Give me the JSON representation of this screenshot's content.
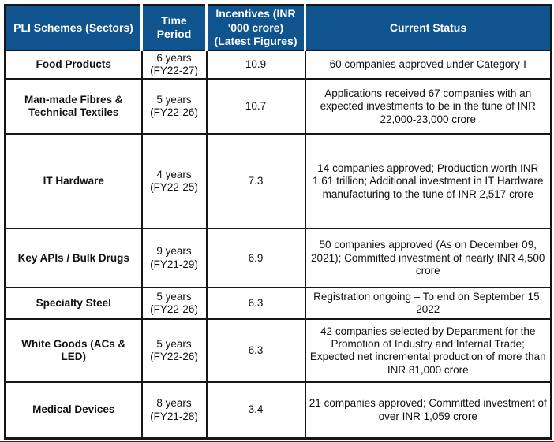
{
  "table": {
    "columns": [
      {
        "label": "PLI Schemes (Sectors)"
      },
      {
        "label": "Time\nPeriod"
      },
      {
        "label": "Incentives (INR\n'000 crore)\n(Latest Figures)"
      },
      {
        "label": "Current Status"
      }
    ],
    "rows": [
      {
        "sector": "Food Products",
        "time_period": "6 years\n(FY22-27)",
        "incentives": "10.9",
        "status": "60 companies approved under Category-I"
      },
      {
        "sector": "Man-made Fibres & Technical Textiles",
        "time_period": "5 years\n(FY22-26)",
        "incentives": "10.7",
        "status": "Applications received 67 companies with an expected investments to be in the tune of INR 22,000-23,000 crore"
      },
      {
        "sector": "IT Hardware",
        "time_period": "4 years\n(FY22-25)",
        "incentives": "7.3",
        "status": "14 companies approved; Production worth INR 1.61 trillion; Additional investment in IT Hardware manufacturing to the tune of INR 2,517 crore"
      },
      {
        "sector": "Key APIs / Bulk Drugs",
        "time_period": "9 years\n(FY21-29)",
        "incentives": "6.9",
        "status": "50 companies approved (As on December 09, 2021); Committed investment of nearly INR 4,500 crore"
      },
      {
        "sector": "Specialty Steel",
        "time_period": "5 years\n(FY22-26)",
        "incentives": "6.3",
        "status": "Registration ongoing – To end on September 15, 2022"
      },
      {
        "sector": "White Goods (ACs & LED)",
        "time_period": "5 years\n(FY22-26)",
        "incentives": "6.3",
        "status": "42 companies selected by Department for the Promotion of Industry and Internal Trade; Expected net incremental production of more than INR 81,000 crore"
      },
      {
        "sector": "Medical Devices",
        "time_period": "8 years\n(FY21-28)",
        "incentives": "3.4",
        "status": "21 companies approved; Committed investment of over INR 1,059 crore"
      }
    ]
  },
  "colors": {
    "header_bg": "#0F538F",
    "header_text": "#FFFFFF",
    "border": "#161616",
    "bottom_bar": "#2B2D33"
  }
}
